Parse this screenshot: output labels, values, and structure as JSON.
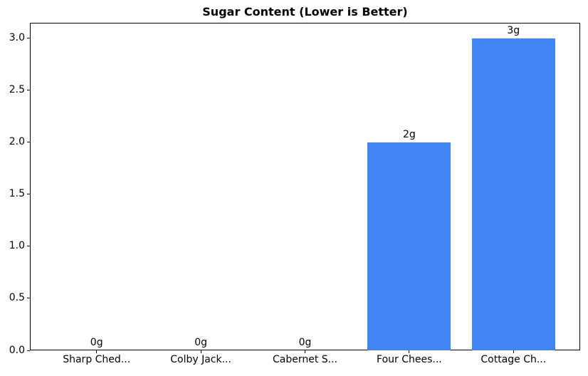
{
  "chart_data": {
    "type": "bar",
    "title": "Sugar Content (Lower is Better)",
    "categories": [
      "Sharp Ched...",
      "Colby Jack...",
      "Cabernet S...",
      "Four Chees...",
      "Cottage Ch..."
    ],
    "values": [
      0,
      0,
      0,
      2,
      3
    ],
    "value_labels": [
      "0g",
      "0g",
      "0g",
      "2g",
      "3g"
    ],
    "xlabel": "",
    "ylabel": "",
    "ylim": [
      0,
      3.15
    ],
    "yticks": [
      0.0,
      0.5,
      1.0,
      1.5,
      2.0,
      2.5,
      3.0
    ],
    "ytick_labels": [
      "0.0",
      "0.5",
      "1.0",
      "1.5",
      "2.0",
      "2.5",
      "3.0"
    ],
    "bar_color": "#4285F4",
    "text_color": "#000000",
    "grid": false,
    "legend": null
  }
}
